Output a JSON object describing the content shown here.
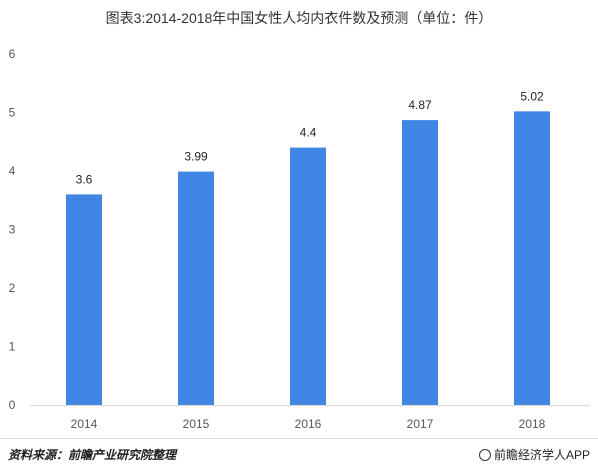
{
  "chart_data": {
    "type": "bar",
    "title": "图表3:2014-2018年中国女性人均内衣件数及预测（单位：件）",
    "categories": [
      "2014",
      "2015",
      "2016",
      "2017",
      "2018"
    ],
    "values": [
      3.6,
      3.99,
      4.4,
      4.87,
      5.02
    ],
    "value_labels": [
      "3.6",
      "3.99",
      "4.4",
      "4.87",
      "5.02"
    ],
    "y_ticks": [
      "0",
      "1",
      "2",
      "3",
      "4",
      "5",
      "6"
    ],
    "ylim": [
      0,
      6
    ],
    "bar_color": "#4286e3",
    "grid": false,
    "legend": "none"
  },
  "footer": {
    "source": "资料来源：前瞻产业研究院整理",
    "brand": "前瞻经济学人APP"
  }
}
